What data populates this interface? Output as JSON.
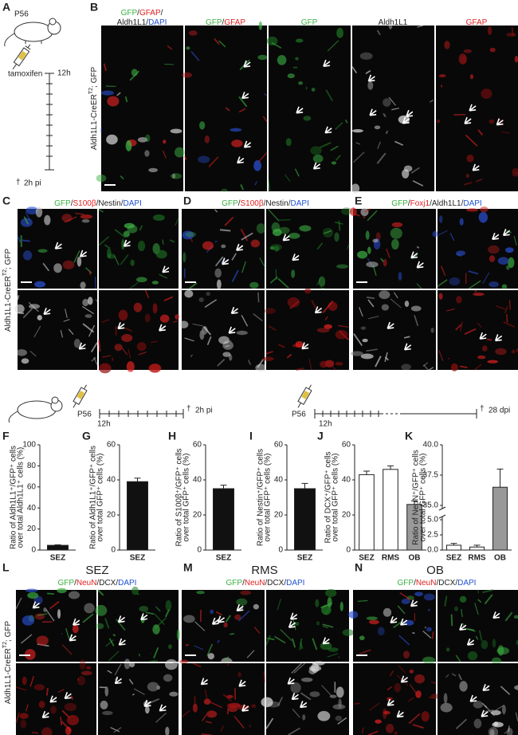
{
  "panel_a": {
    "letter": "A",
    "age": "P56",
    "drug": "tamoxifen",
    "tick": "12h",
    "end_symbol": "†",
    "end": "2h pi"
  },
  "panel_b": {
    "letter": "B",
    "side_label": [
      {
        "text": "Aldh1L1-CreER"
      },
      {
        "text": "T2",
        "sup": true
      },
      {
        "text": "; GFP"
      }
    ],
    "images": [
      {
        "label": [
          [
            {
              "text": "GFP",
              "color": "#3cb043"
            },
            {
              "text": "/"
            },
            {
              "text": "GFAP",
              "color": "#e02020"
            },
            {
              "text": "/"
            }
          ],
          [
            {
              "text": "Aldh1L1"
            },
            {
              "text": "/"
            },
            {
              "text": "DAPI",
              "color": "#2050d0"
            }
          ]
        ]
      },
      {
        "label": [
          [
            {
              "text": "GFP",
              "color": "#3cb043"
            },
            {
              "text": "/"
            },
            {
              "text": "GFAP",
              "color": "#e02020"
            }
          ]
        ]
      },
      {
        "label": [
          [
            {
              "text": "GFP",
              "color": "#3cb043"
            }
          ]
        ]
      },
      {
        "label": [
          [
            {
              "text": "Aldh1L1"
            }
          ]
        ]
      },
      {
        "label": [
          [
            {
              "text": "GFAP",
              "color": "#e02020"
            }
          ]
        ]
      }
    ]
  },
  "panel_c": {
    "letter": "C",
    "side_label": [
      {
        "text": "Aldh1L1-CreER"
      },
      {
        "text": "T2",
        "sup": true
      },
      {
        "text": "; GFP"
      }
    ],
    "label": [
      {
        "text": "GFP",
        "color": "#3cb043"
      },
      {
        "text": "/"
      },
      {
        "text": "S100β",
        "color": "#e02020"
      },
      {
        "text": "/"
      },
      {
        "text": "Nestin"
      },
      {
        "text": "/"
      },
      {
        "text": "DAPI",
        "color": "#2050d0"
      }
    ]
  },
  "panel_d": {
    "letter": "D",
    "label": [
      {
        "text": "GFP",
        "color": "#3cb043"
      },
      {
        "text": "/"
      },
      {
        "text": "S100β",
        "color": "#e02020"
      },
      {
        "text": "/"
      },
      {
        "text": "Nestin"
      },
      {
        "text": "/"
      },
      {
        "text": "DAPI",
        "color": "#2050d0"
      }
    ]
  },
  "panel_e": {
    "letter": "E",
    "label": [
      {
        "text": "GFP",
        "color": "#3cb043"
      },
      {
        "text": "/"
      },
      {
        "text": "Foxj1",
        "color": "#e02020"
      },
      {
        "text": "/"
      },
      {
        "text": "Aldh1L1"
      },
      {
        "text": "/"
      },
      {
        "text": "DAPI",
        "color": "#2050d0"
      }
    ]
  },
  "timeline_short": {
    "age": "P56",
    "tick": "12h",
    "end_symbol": "†",
    "end": "2h pi"
  },
  "timeline_long": {
    "age": "P56",
    "tick": "12h",
    "end_symbol": "†",
    "end": "28 dpi"
  },
  "charts": [
    {
      "type": "bar",
      "letter": "F",
      "y_label": [
        "Ratio of Aldh1L1⁺/GFP⁺ cells",
        "over total Aldh1L1⁺ cells (%)"
      ],
      "categories": [
        "SEZ"
      ],
      "values": [
        4.5
      ],
      "errors": [
        0.5
      ],
      "colors": [
        "#111111"
      ],
      "ylim": [
        0,
        100
      ],
      "yticks": [
        0,
        20,
        40,
        60,
        80,
        100
      ]
    },
    {
      "type": "bar",
      "letter": "G",
      "y_label": [
        "Ratio of Aldh1L1⁺/GFP⁺ cells",
        "over total GFP⁺ cells (%)"
      ],
      "categories": [
        "SEZ"
      ],
      "values": [
        39
      ],
      "errors": [
        2
      ],
      "colors": [
        "#111111"
      ],
      "ylim": [
        0,
        60
      ],
      "yticks": [
        0,
        20,
        40,
        60
      ]
    },
    {
      "type": "bar",
      "letter": "H",
      "y_label": [
        "Ratio of S100β⁺/GFP⁺ cells",
        "over total GFP⁺ cells (%)"
      ],
      "categories": [
        "SEZ"
      ],
      "values": [
        35
      ],
      "errors": [
        2
      ],
      "colors": [
        "#111111"
      ],
      "ylim": [
        0,
        60
      ],
      "yticks": [
        0,
        20,
        40,
        60
      ]
    },
    {
      "type": "bar",
      "letter": "I",
      "y_label": [
        "Ratio of Nestin⁺/GFP⁺ cells",
        "over total GFP⁺ cells (%)"
      ],
      "categories": [
        "SEZ"
      ],
      "values": [
        35
      ],
      "errors": [
        3
      ],
      "colors": [
        "#111111"
      ],
      "ylim": [
        0,
        60
      ],
      "yticks": [
        0,
        20,
        40,
        60
      ]
    },
    {
      "type": "bar",
      "letter": "J",
      "y_label": [
        "Ratio of DCX⁺/GFP⁺ cells",
        "over total GFP⁺ cells (%)"
      ],
      "categories": [
        "SEZ",
        "RMS",
        "OB"
      ],
      "values": [
        43,
        46,
        26
      ],
      "errors": [
        2,
        2,
        2
      ],
      "colors": [
        "#ffffff",
        "#ffffff",
        "#999999"
      ],
      "ylim": [
        0,
        60
      ],
      "yticks": [
        0,
        20,
        40,
        60
      ]
    },
    {
      "type": "broken_bar",
      "letter": "K",
      "y_label": [
        "Ratio of NeuN⁺/GFP⁺ cells",
        "over total GFP⁺ cells (%)"
      ],
      "categories": [
        "SEZ",
        "RMS",
        "OB"
      ],
      "values": [
        0.8,
        0.5,
        36.5
      ],
      "errors": [
        0.3,
        0.3,
        1.5
      ],
      "colors": [
        "#ffffff",
        "#ffffff",
        "#999999"
      ],
      "ylim_lower": [
        0,
        5
      ],
      "yticks_lower": [
        {
          "value": 0,
          "label": "0.0"
        },
        2.5,
        {
          "value": 5,
          "label": "5.0"
        }
      ],
      "ylim_upper": [
        35,
        40
      ],
      "yticks_upper": [
        {
          "value": 35,
          "label": "35.0"
        },
        37.5,
        {
          "value": 40,
          "label": "40.0"
        }
      ]
    }
  ],
  "panel_l": {
    "letter": "L",
    "title": "SEZ",
    "side_label": [
      {
        "text": "Aldh1L1-CreER"
      },
      {
        "text": "T2",
        "sup": true
      },
      {
        "text": "; GFP"
      }
    ],
    "label": [
      {
        "text": "GFP",
        "color": "#3cb043"
      },
      {
        "text": "/"
      },
      {
        "text": "NeuN",
        "color": "#e02020"
      },
      {
        "text": "/"
      },
      {
        "text": "DCX"
      },
      {
        "text": "/"
      },
      {
        "text": "DAPI",
        "color": "#2050d0"
      }
    ]
  },
  "panel_m": {
    "letter": "M",
    "title": "RMS",
    "label": [
      {
        "text": "GFP",
        "color": "#3cb043"
      },
      {
        "text": "/"
      },
      {
        "text": "NeuN",
        "color": "#e02020"
      },
      {
        "text": "/"
      },
      {
        "text": "DCX"
      },
      {
        "text": "/"
      },
      {
        "text": "DAPI",
        "color": "#2050d0"
      }
    ]
  },
  "panel_n": {
    "letter": "N",
    "title": "OB",
    "label": [
      {
        "text": "GFP",
        "color": "#3cb043"
      },
      {
        "text": "/"
      },
      {
        "text": "NeuN",
        "color": "#e02020"
      },
      {
        "text": "/"
      },
      {
        "text": "DCX"
      },
      {
        "text": "/"
      },
      {
        "text": "DAPI",
        "color": "#2050d0"
      }
    ]
  }
}
